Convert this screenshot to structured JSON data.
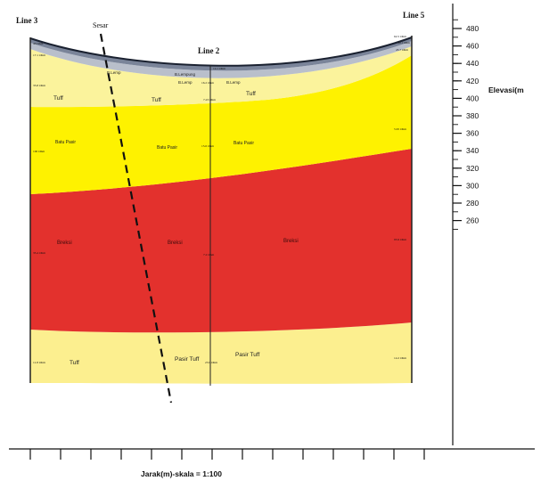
{
  "section_lines": {
    "left": "Line 3",
    "middle": "Line 2",
    "right": "Line 5"
  },
  "fault_label": "Sesar",
  "axis": {
    "y_title": "Elevasi(m",
    "y_ticks": [
      "480",
      "460",
      "440",
      "420",
      "400",
      "380",
      "360",
      "340",
      "320",
      "300",
      "280",
      "260"
    ],
    "x_title": "Jarak(m)-skala = 1:100"
  },
  "layer_labels": {
    "lempung": [
      "B.Lemp",
      "B.Lempung",
      "B.Lemp",
      "B.Lemp"
    ],
    "tuff_upper": [
      "Tuff",
      "Tuff",
      "Tuff"
    ],
    "batu_pasir": [
      "Batu Pasir",
      "Batu Pasir",
      "Batu Pasir"
    ],
    "breksi": [
      "Breksi",
      "Breksi",
      "Breksi"
    ],
    "tuff_lower": [
      "Tuff",
      "Pasir Tuff",
      "Pasir Tuff"
    ]
  },
  "resistivity": {
    "left": [
      "45 Ohm",
      "17.1 Ohm",
      "35.8 Ohm",
      "100 Ohm",
      "35.4 Ohm",
      "11.8 Ohm"
    ],
    "middle": [
      "14.1 Ohm",
      "16.2 Ohm",
      "7.23 Ohm",
      "15.6 Ohm",
      "7.2 Ohm",
      "23.9 Ohm"
    ],
    "right": [
      "62.5 Ohm",
      "40.1 Ohm",
      "45.7 Ohm",
      "5.95 Ohm",
      "95.9 Ohm",
      "14.2 Ohm"
    ]
  },
  "colors": {
    "clay_dark": "#7a8499",
    "clay_light": "#b9bfcb",
    "tuff": "#fbf39c",
    "sandstone": "#fef200",
    "breccia": "#e3312d",
    "lower_tuff": "#fcef8f"
  }
}
